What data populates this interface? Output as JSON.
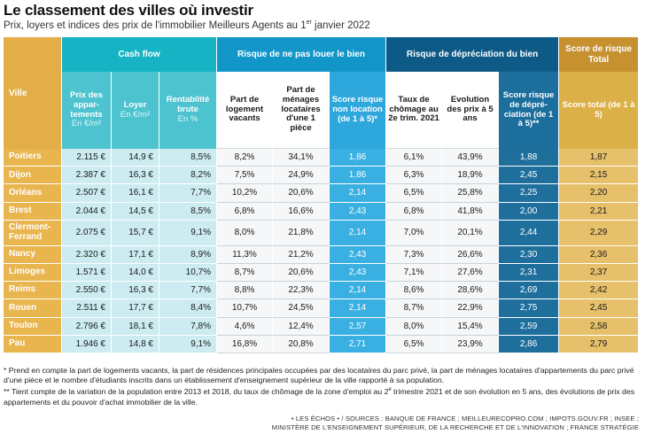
{
  "title": "Le classement des villes où investir",
  "subtitle": "Prix, loyers et indices des prix de l'immobilier Meilleurs Agents au 1",
  "subtitle_sup": "er",
  "subtitle_end": " janvier 2022",
  "groups": {
    "cash": "Cash flow",
    "risk": "Risque de ne pas louer le bien",
    "dep": "Risque de dépréciation du bien",
    "score": "Score de risque Total"
  },
  "headers": {
    "ville": "Ville",
    "prix": "Prix des appar-tements",
    "prix_unit": "En €/m²",
    "loyer": "Loyer",
    "loyer_unit": "En €/m²",
    "renta": "Rentabilité brute",
    "renta_unit": "En %",
    "part_vacants": "Part de logement vacants",
    "part_menages": "Part de ménages locataires d'une 1 pièce",
    "score_location": "Score risque non location (de 1 à 5)*",
    "chomage": "Taux de chômage au 2e trim. 2021",
    "evolution": "Evolution des prix à 5 ans",
    "score_dep": "Score risque de dépré-ciation (de 1 à 5)**",
    "score_total": "Score total (de 1 à 5)"
  },
  "rows": [
    {
      "ville": "Poitiers",
      "prix": "2.115 €",
      "loyer": "14,9 €",
      "renta": "8,5%",
      "vacants": "8,2%",
      "menages": "34,1%",
      "score_loc": "1,86",
      "chomage": "6,1%",
      "evolution": "43,9%",
      "score_dep": "1,88",
      "total": "1,87"
    },
    {
      "ville": "Dijon",
      "prix": "2.387 €",
      "loyer": "16,3 €",
      "renta": "8,2%",
      "vacants": "7,5%",
      "menages": "24,9%",
      "score_loc": "1,86",
      "chomage": "6,3%",
      "evolution": "18,9%",
      "score_dep": "2,45",
      "total": "2,15"
    },
    {
      "ville": "Orléans",
      "prix": "2.507 €",
      "loyer": "16,1 €",
      "renta": "7,7%",
      "vacants": "10,2%",
      "menages": "20,6%",
      "score_loc": "2,14",
      "chomage": "6,5%",
      "evolution": "25,8%",
      "score_dep": "2,25",
      "total": "2,20"
    },
    {
      "ville": "Brest",
      "prix": "2.044 €",
      "loyer": "14,5 €",
      "renta": "8,5%",
      "vacants": "6,8%",
      "menages": "16,6%",
      "score_loc": "2,43",
      "chomage": "6,8%",
      "evolution": "41,8%",
      "score_dep": "2,00",
      "total": "2,21"
    },
    {
      "ville": "Clermont-Ferrand",
      "prix": "2.075 €",
      "loyer": "15,7 €",
      "renta": "9,1%",
      "vacants": "8,0%",
      "menages": "21,8%",
      "score_loc": "2,14",
      "chomage": "7,0%",
      "evolution": "20,1%",
      "score_dep": "2,44",
      "total": "2,29"
    },
    {
      "ville": "Nancy",
      "prix": "2.320 €",
      "loyer": "17,1 €",
      "renta": "8,9%",
      "vacants": "11,3%",
      "menages": "21,2%",
      "score_loc": "2,43",
      "chomage": "7,3%",
      "evolution": "26,6%",
      "score_dep": "2,30",
      "total": "2,36"
    },
    {
      "ville": "Limoges",
      "prix": "1.571 €",
      "loyer": "14,0 €",
      "renta": "10,7%",
      "vacants": "8,7%",
      "menages": "20,6%",
      "score_loc": "2,43",
      "chomage": "7,1%",
      "evolution": "27,6%",
      "score_dep": "2,31",
      "total": "2,37"
    },
    {
      "ville": "Reims",
      "prix": "2.550 €",
      "loyer": "16,3 €",
      "renta": "7,7%",
      "vacants": "8,8%",
      "menages": "22,3%",
      "score_loc": "2,14",
      "chomage": "8,6%",
      "evolution": "28,6%",
      "score_dep": "2,69",
      "total": "2,42"
    },
    {
      "ville": "Rouen",
      "prix": "2.511 €",
      "loyer": "17,7 €",
      "renta": "8,4%",
      "vacants": "10,7%",
      "menages": "24,5%",
      "score_loc": "2,14",
      "chomage": "8,7%",
      "evolution": "22,9%",
      "score_dep": "2,75",
      "total": "2,45"
    },
    {
      "ville": "Toulon",
      "prix": "2.796 €",
      "loyer": "18,1 €",
      "renta": "7,8%",
      "vacants": "4,6%",
      "menages": "12,4%",
      "score_loc": "2,57",
      "chomage": "8,0%",
      "evolution": "15,4%",
      "score_dep": "2,59",
      "total": "2,58"
    },
    {
      "ville": "Pau",
      "prix": "1.946 €",
      "loyer": "14,8 €",
      "renta": "9,1%",
      "vacants": "16,8%",
      "menages": "20,8%",
      "score_loc": "2,71",
      "chomage": "6,5%",
      "evolution": "23,9%",
      "score_dep": "2,86",
      "total": "2,79"
    }
  ],
  "notes": {
    "n1": "* Prend en compte la part de logements vacants, la part de résidences principales occupées par des locataires du parc privé, la part de ménages locataires d'appartements du parc privé d'une pièce et le nombre d'étudiants inscrits dans un établissement d'enseignement supérieur de la ville rapporté à sa population.",
    "n2_a": "** Tient compte de la variation de la population entre 2013 et 2018, du taux de chômage de la zone d'emploi au 2",
    "n2_sup": "e",
    "n2_b": " trimestre 2021 et de son évolution en 5 ans, des évolutions de prix des appartements et du pouvoir d'achat immobilier de la ville."
  },
  "sources": {
    "line1": "• LES ÉCHOS • / SOURCES : BANQUE DE FRANCE ; MEILLEURECOPRO.COM ; IMPOTS.GOUV.FR ; INSEE ;",
    "line2": "MINISTÈRE DE L'ENSEIGNEMENT SUPÉRIEUR, DE LA RECHERCHE ET DE L'INNOVATION ; FRANCE STRATÉGIE"
  }
}
